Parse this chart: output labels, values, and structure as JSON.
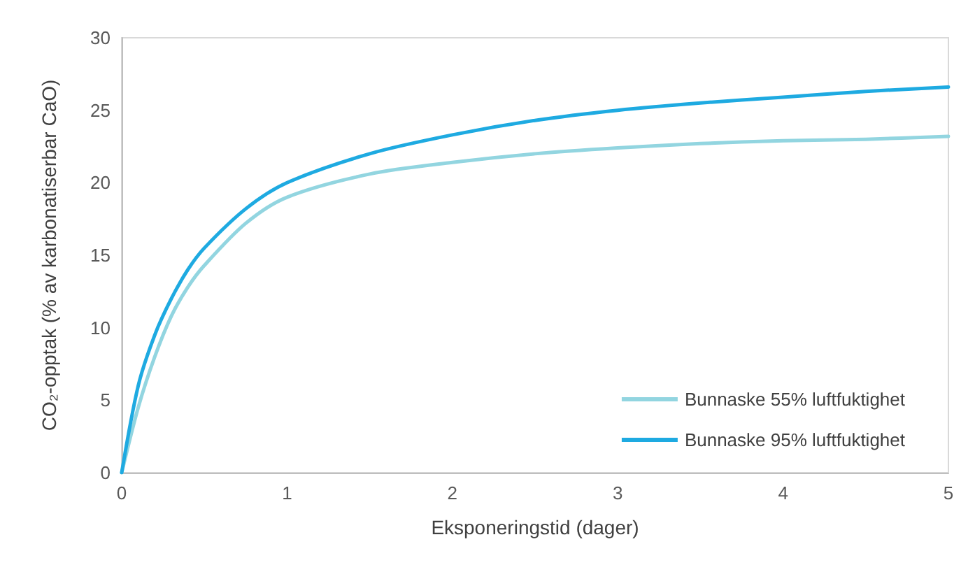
{
  "chart_data": {
    "type": "line",
    "xlabel": "Eksponeringstid (dager)",
    "ylabel": "CO₂-opptak (% av karbonatiserbar CaO)",
    "xlim": [
      0,
      5
    ],
    "xticks": [
      0,
      1,
      2,
      3,
      4,
      5
    ],
    "ylim": [
      0,
      30
    ],
    "yticks": [
      0,
      5,
      10,
      15,
      20,
      25,
      30
    ],
    "grid": false,
    "legend": "bottom right",
    "marker": "none",
    "line_style": "solid",
    "series": [
      {
        "name": "Bunnaske 55% luftfuktighet",
        "color": "#92d5e0",
        "x": [
          0,
          0.1,
          0.2,
          0.3,
          0.4,
          0.5,
          0.75,
          1,
          1.5,
          2,
          2.5,
          3,
          3.5,
          4,
          4.5,
          5
        ],
        "values": [
          0,
          4.5,
          8,
          10.8,
          12.8,
          14.3,
          17.2,
          19.0,
          20.6,
          21.4,
          22.0,
          22.4,
          22.7,
          22.9,
          23.0,
          23.2
        ]
      },
      {
        "name": "Bunnaske 95% luftfuktighet",
        "color": "#1eaae1",
        "x": [
          0,
          0.1,
          0.2,
          0.3,
          0.4,
          0.5,
          0.75,
          1,
          1.5,
          2,
          2.5,
          3,
          3.5,
          4,
          4.5,
          5
        ],
        "values": [
          0,
          6,
          9.5,
          12,
          14,
          15.5,
          18.2,
          20,
          22.0,
          23.3,
          24.3,
          25.0,
          25.5,
          25.9,
          26.3,
          26.6
        ]
      }
    ]
  }
}
